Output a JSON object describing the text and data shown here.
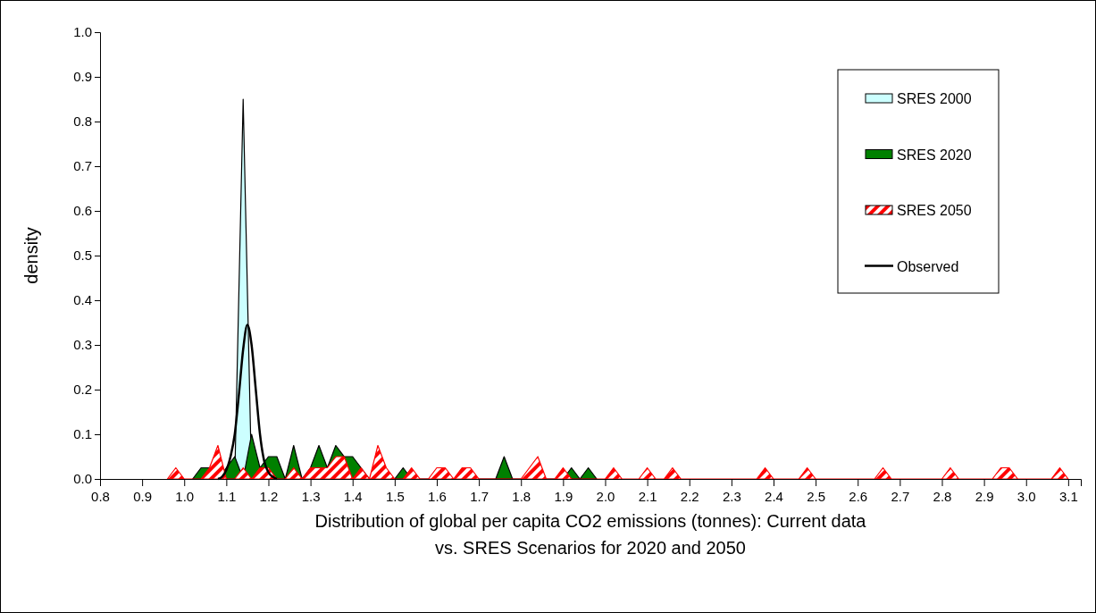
{
  "chart_data": {
    "type": "area",
    "xlabel": "Distribution of global per capita CO2 emissions (tonnes): Current data vs. SRES Scenarios for 2020 and 2050",
    "ylabel": "density",
    "xlim": [
      0.8,
      3.13
    ],
    "ylim": [
      0,
      1
    ],
    "xticks": [
      0.8,
      0.9,
      {
        "value": 1,
        "label": "1.0"
      },
      1.1,
      1.2,
      1.3,
      1.4,
      1.5,
      1.6,
      1.7,
      1.8,
      1.9,
      {
        "value": 2,
        "label": "2.0"
      },
      2.1,
      2.2,
      2.3,
      2.4,
      2.5,
      2.6,
      2.7,
      2.8,
      2.9,
      {
        "value": 3,
        "label": "3.0"
      },
      3.1
    ],
    "yticks": [
      {
        "value": 0,
        "label": "0.0"
      },
      0.1,
      0.2,
      0.3,
      0.4,
      0.5,
      0.6,
      0.7,
      0.8,
      0.9,
      {
        "value": 1,
        "label": "1.0"
      }
    ],
    "legend": "top right",
    "marker": "none",
    "series": [
      {
        "name": "SRES 2000",
        "type": "area",
        "color": "#ccffff",
        "x": [
          1.12,
          1.14,
          1.16
        ],
        "values": [
          0,
          0.85,
          0
        ]
      },
      {
        "name": "SRES 2020",
        "type": "area",
        "color": "#008000",
        "x": [
          1.02,
          1.04,
          1.06,
          1.08,
          1.1,
          1.12,
          1.14,
          1.16,
          1.18,
          1.2,
          1.22,
          1.24,
          1.26,
          1.28,
          1.3,
          1.32,
          1.34,
          1.36,
          1.38,
          1.4,
          1.42,
          1.44,
          1.5,
          1.52,
          1.54,
          1.74,
          1.76,
          1.78,
          1.9,
          1.92,
          1.94,
          1.96,
          1.98
        ],
        "values": [
          0,
          0.025,
          0.025,
          0,
          0.025,
          0.05,
          0,
          0.1,
          0.025,
          0.05,
          0.05,
          0,
          0.075,
          0,
          0.025,
          0.075,
          0.025,
          0.075,
          0.05,
          0.05,
          0.025,
          0,
          0,
          0.025,
          0,
          0,
          0.05,
          0,
          0,
          0.025,
          0,
          0.025,
          0
        ]
      },
      {
        "name": "SRES 2050",
        "type": "area",
        "color": "#ff0000",
        "x": [
          0.96,
          0.98,
          1.0,
          1.04,
          1.06,
          1.08,
          1.1,
          1.12,
          1.14,
          1.16,
          1.18,
          1.2,
          1.22,
          1.24,
          1.26,
          1.28,
          1.3,
          1.32,
          1.34,
          1.36,
          1.38,
          1.4,
          1.42,
          1.44,
          1.46,
          1.48,
          1.5,
          1.52,
          1.54,
          1.56,
          1.58,
          1.6,
          1.62,
          1.64,
          1.66,
          1.68,
          1.7,
          1.8,
          1.82,
          1.84,
          1.86,
          1.88,
          1.9,
          1.92,
          2.0,
          2.02,
          2.04,
          2.08,
          2.1,
          2.12,
          2.14,
          2.16,
          2.18,
          2.36,
          2.38,
          2.4,
          2.46,
          2.48,
          2.5,
          2.64,
          2.66,
          2.68,
          2.8,
          2.82,
          2.84,
          2.92,
          2.94,
          2.96,
          2.98,
          3.06,
          3.08,
          3.1
        ],
        "values": [
          0,
          0.025,
          0,
          0,
          0.025,
          0.075,
          0,
          0,
          0.025,
          0,
          0.025,
          0.025,
          0,
          0,
          0.025,
          0,
          0.025,
          0.025,
          0.025,
          0.05,
          0.05,
          0,
          0.025,
          0,
          0.075,
          0.025,
          0,
          0,
          0.025,
          0,
          0,
          0.025,
          0.025,
          0,
          0.025,
          0.025,
          0,
          0,
          0.025,
          0.05,
          0,
          0,
          0.025,
          0,
          0,
          0.025,
          0,
          0,
          0.025,
          0,
          0,
          0.025,
          0,
          0,
          0.025,
          0,
          0,
          0.025,
          0,
          0,
          0.025,
          0,
          0,
          0.025,
          0,
          0,
          0.025,
          0.025,
          0,
          0,
          0.025,
          0
        ]
      },
      {
        "name": "Observed",
        "type": "line",
        "color": "#000000",
        "line_style": "solid",
        "x": [
          1.08,
          1.09,
          1.1,
          1.11,
          1.12,
          1.13,
          1.14,
          1.15,
          1.16,
          1.17,
          1.18,
          1.19,
          1.2,
          1.21,
          1.22
        ],
        "values": [
          0,
          0.005,
          0.02,
          0.05,
          0.1,
          0.19,
          0.29,
          0.345,
          0.3,
          0.2,
          0.1,
          0.04,
          0.015,
          0.005,
          0
        ]
      }
    ]
  }
}
